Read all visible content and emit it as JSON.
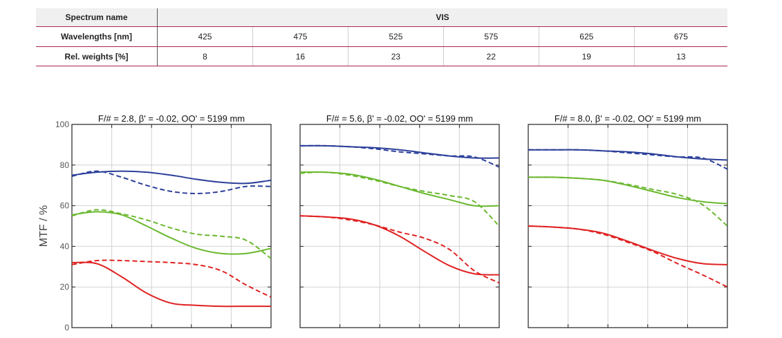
{
  "table": {
    "rows": [
      {
        "label": "Spectrum name",
        "span": "VIS"
      },
      {
        "label": "Wavelengths [nm]",
        "values": [
          "425",
          "475",
          "525",
          "575",
          "625",
          "675"
        ]
      },
      {
        "label": "Rel. weights [%]",
        "values": [
          "8",
          "16",
          "23",
          "22",
          "19",
          "13"
        ]
      }
    ]
  },
  "colors": {
    "blue": "#2b3f9a",
    "green": "#6ab82e",
    "red": "#e02020"
  },
  "chart_data": [
    {
      "type": "line",
      "title": "F/# = 2.8, β' = -0.02, OO' = 5199 mm",
      "ylabel": "MTF / %",
      "ylim": [
        0,
        100
      ],
      "yticks": [
        "0",
        "20",
        "40",
        "60",
        "80",
        "100"
      ],
      "grid": true,
      "series": [
        {
          "color": "blue",
          "dash": false,
          "values": [
            75,
            76.5,
            77,
            76.5,
            75,
            73,
            71.5,
            71,
            72.5
          ]
        },
        {
          "color": "blue",
          "dash": true,
          "values": [
            74.5,
            77,
            74,
            70,
            67,
            66,
            67,
            69.5,
            69.5
          ]
        },
        {
          "color": "green",
          "dash": false,
          "values": [
            55.5,
            57,
            55.5,
            50,
            44,
            39,
            36.5,
            36.5,
            39
          ]
        },
        {
          "color": "green",
          "dash": true,
          "values": [
            55,
            58,
            56,
            53,
            49,
            46,
            45,
            43,
            34
          ]
        },
        {
          "color": "red",
          "dash": false,
          "values": [
            32,
            31.5,
            25,
            17,
            12,
            11,
            10.5,
            10.5,
            10.5
          ]
        },
        {
          "color": "red",
          "dash": true,
          "values": [
            31,
            33,
            33,
            32.5,
            32,
            31,
            28,
            21,
            15
          ]
        }
      ]
    },
    {
      "type": "line",
      "title": "F/# = 5.6, β' = -0.02, OO' = 5199 mm",
      "ylim": [
        0,
        100
      ],
      "grid": true,
      "series": [
        {
          "color": "blue",
          "dash": false,
          "values": [
            89.5,
            89.5,
            89,
            88.5,
            87.5,
            86,
            84.5,
            83.5,
            83.5
          ]
        },
        {
          "color": "blue",
          "dash": true,
          "values": [
            89.5,
            89.5,
            89,
            88,
            86.5,
            85.5,
            84.5,
            84,
            79
          ]
        },
        {
          "color": "green",
          "dash": false,
          "values": [
            76.5,
            76.5,
            75.5,
            73,
            69.5,
            66,
            63,
            60,
            60
          ]
        },
        {
          "color": "green",
          "dash": true,
          "values": [
            76,
            76.5,
            75,
            72.5,
            69.5,
            67,
            65,
            62,
            50
          ]
        },
        {
          "color": "red",
          "dash": false,
          "values": [
            55,
            54.5,
            53.5,
            50.5,
            45,
            37.5,
            30.5,
            26.5,
            26
          ]
        },
        {
          "color": "red",
          "dash": true,
          "values": [
            55,
            54.5,
            53,
            50.5,
            47,
            44,
            38.5,
            28,
            22
          ]
        }
      ]
    },
    {
      "type": "line",
      "title": "F/# = 8.0, β' = -0.02, OO' = 5199 mm",
      "ylim": [
        0,
        100
      ],
      "grid": true,
      "series": [
        {
          "color": "blue",
          "dash": false,
          "values": [
            87.5,
            87.5,
            87.5,
            87,
            86.5,
            85.5,
            84,
            83,
            82.5
          ]
        },
        {
          "color": "blue",
          "dash": true,
          "values": [
            87.5,
            87.5,
            87.5,
            87,
            86,
            85,
            84,
            83.5,
            78
          ]
        },
        {
          "color": "green",
          "dash": false,
          "values": [
            74,
            74,
            73.5,
            72.5,
            70,
            67,
            64,
            62,
            61
          ]
        },
        {
          "color": "green",
          "dash": true,
          "values": [
            74,
            74,
            73.5,
            72.5,
            70.5,
            68,
            65.5,
            60.5,
            50
          ]
        },
        {
          "color": "red",
          "dash": false,
          "values": [
            50,
            49.5,
            48.5,
            46.5,
            42.5,
            38,
            34,
            31.5,
            31
          ]
        },
        {
          "color": "red",
          "dash": true,
          "values": [
            50,
            49.5,
            48.5,
            46,
            42,
            37.5,
            31.5,
            26,
            20
          ]
        }
      ]
    }
  ]
}
